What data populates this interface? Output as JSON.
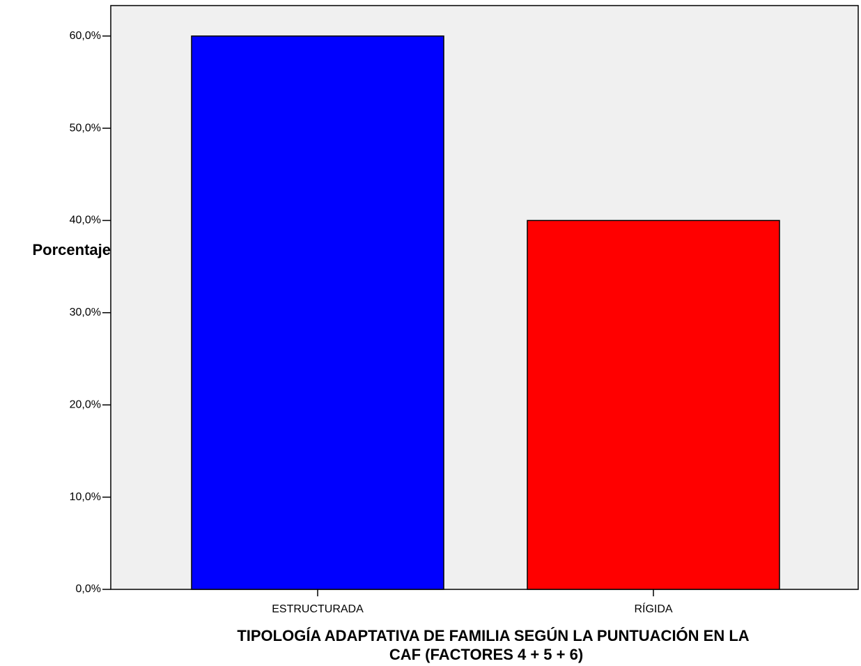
{
  "chart_data": {
    "type": "bar",
    "y_label": "Porcentaje",
    "x_label": [
      "TIPOLOGÍA ADAPTATIVA DE FAMILIA SEGÚN LA PUNTUACIÓN EN LA",
      "CAF (FACTORES 4 + 5 + 6)"
    ],
    "categories": [
      "ESTRUCTURADA",
      "RÍGIDA"
    ],
    "values": [
      60,
      40
    ],
    "colors": [
      "#0000ff",
      "#ff0000"
    ],
    "ylim": [
      0,
      63.3
    ],
    "yticks": [
      {
        "value": 0,
        "label": "0,0%"
      },
      {
        "value": 10,
        "label": "10,0%"
      },
      {
        "value": 20,
        "label": "20,0%"
      },
      {
        "value": 30,
        "label": "30,0%"
      },
      {
        "value": 40,
        "label": "40,0%"
      },
      {
        "value": 50,
        "label": "50,0%"
      },
      {
        "value": 60,
        "label": "60,0%"
      }
    ],
    "grid": false
  }
}
